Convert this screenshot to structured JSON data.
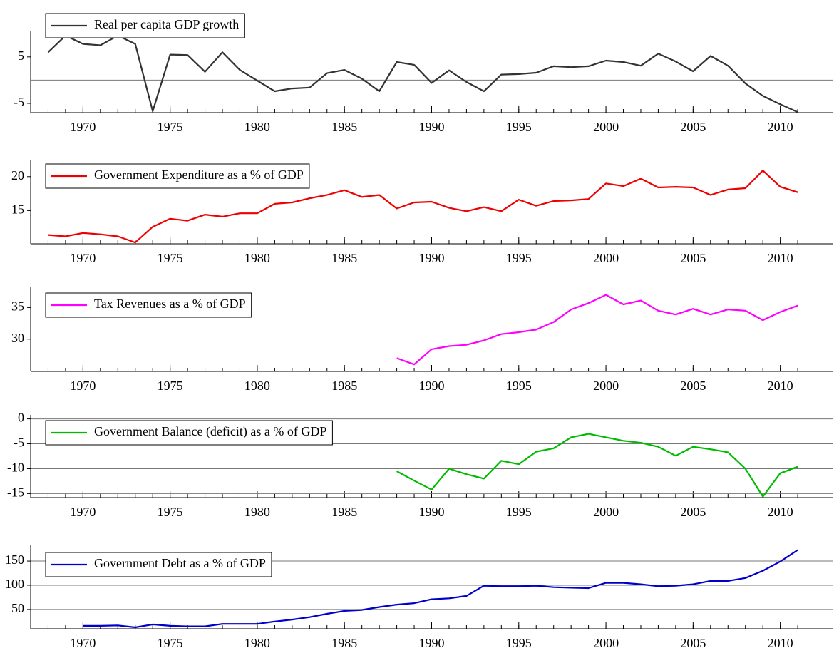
{
  "chart_data": [
    {
      "type": "line",
      "x": [
        1968,
        1969,
        1970,
        1971,
        1972,
        1973,
        1974,
        1975,
        1976,
        1977,
        1978,
        1979,
        1980,
        1981,
        1982,
        1983,
        1984,
        1985,
        1986,
        1987,
        1988,
        1989,
        1990,
        1991,
        1992,
        1993,
        1994,
        1995,
        1996,
        1997,
        1998,
        1999,
        2000,
        2001,
        2002,
        2003,
        2004,
        2005,
        2006,
        2007,
        2008,
        2009,
        2010,
        2011
      ],
      "series": [
        {
          "name": "Real per capita GDP growth",
          "color": "#333333",
          "values": [
            6.0,
            9.6,
            7.8,
            7.5,
            9.6,
            7.8,
            -6.7,
            5.5,
            5.4,
            1.8,
            6.0,
            2.2,
            -0.1,
            -2.4,
            -1.8,
            -1.6,
            1.5,
            2.2,
            0.3,
            -2.4,
            3.9,
            3.3,
            -0.6,
            2.1,
            -0.4,
            -2.4,
            1.2,
            1.3,
            1.6,
            3.0,
            2.8,
            3.0,
            4.2,
            3.9,
            3.1,
            5.7,
            4.0,
            1.9,
            5.2,
            3.1,
            -0.7,
            -3.4,
            -5.2,
            -6.9
          ]
        }
      ],
      "xlim": [
        1967,
        2013
      ],
      "xticks": [
        1970,
        1975,
        1980,
        1985,
        1990,
        1995,
        2000,
        2005,
        2010
      ],
      "ylim": [
        -7,
        10.5
      ],
      "yticks": [
        -5,
        5
      ],
      "grid": false,
      "zero_line": true
    },
    {
      "type": "line",
      "x": [
        1968,
        1969,
        1970,
        1971,
        1972,
        1973,
        1974,
        1975,
        1976,
        1977,
        1978,
        1979,
        1980,
        1981,
        1982,
        1983,
        1984,
        1985,
        1986,
        1987,
        1988,
        1989,
        1990,
        1991,
        1992,
        1993,
        1994,
        1995,
        1996,
        1997,
        1998,
        1999,
        2000,
        2001,
        2002,
        2003,
        2004,
        2005,
        2006,
        2007,
        2008,
        2009,
        2010,
        2011
      ],
      "series": [
        {
          "name": "Government Expenditure as a % of GDP",
          "color": "#ee0000",
          "values": [
            11.4,
            11.2,
            11.7,
            11.5,
            11.2,
            10.3,
            12.6,
            13.8,
            13.5,
            14.4,
            14.1,
            14.6,
            14.6,
            16.0,
            16.2,
            16.8,
            17.3,
            18.0,
            17.0,
            17.3,
            15.3,
            16.2,
            16.3,
            15.4,
            14.9,
            15.5,
            14.9,
            16.6,
            15.7,
            16.4,
            16.5,
            16.7,
            19.0,
            18.6,
            19.7,
            18.4,
            18.5,
            18.4,
            17.3,
            18.1,
            18.3,
            20.9,
            18.5,
            17.7
          ]
        }
      ],
      "xlim": [
        1967,
        2013
      ],
      "xticks": [
        1970,
        1975,
        1980,
        1985,
        1990,
        1995,
        2000,
        2005,
        2010
      ],
      "ylim": [
        10.1,
        22.5
      ],
      "yticks": [
        15,
        20
      ],
      "grid": false,
      "zero_line": false
    },
    {
      "type": "line",
      "x": [
        1968,
        1969,
        1970,
        1971,
        1972,
        1973,
        1974,
        1975,
        1976,
        1977,
        1978,
        1979,
        1980,
        1981,
        1982,
        1983,
        1984,
        1985,
        1986,
        1987,
        1988,
        1989,
        1990,
        1991,
        1992,
        1993,
        1994,
        1995,
        1996,
        1997,
        1998,
        1999,
        2000,
        2001,
        2002,
        2003,
        2004,
        2005,
        2006,
        2007,
        2008,
        2009,
        2010,
        2011
      ],
      "series": [
        {
          "name": "Tax Revenues as a % of GDP",
          "color": "#ff00ff",
          "values": [
            null,
            null,
            null,
            null,
            null,
            null,
            null,
            null,
            null,
            null,
            null,
            null,
            null,
            null,
            null,
            null,
            null,
            null,
            null,
            null,
            27.0,
            26.0,
            28.4,
            28.9,
            29.1,
            29.8,
            30.8,
            31.1,
            31.5,
            32.7,
            34.7,
            35.7,
            37.0,
            35.5,
            36.1,
            34.5,
            33.9,
            34.8,
            33.9,
            34.7,
            34.5,
            33.0,
            34.3,
            35.3
          ]
        }
      ],
      "xlim": [
        1967,
        2013
      ],
      "xticks": [
        1970,
        1975,
        1980,
        1985,
        1990,
        1995,
        2000,
        2005,
        2010
      ],
      "ylim": [
        24.9,
        38.2
      ],
      "yticks": [
        30,
        35
      ],
      "grid": false,
      "zero_line": false
    },
    {
      "type": "line",
      "x": [
        1968,
        1969,
        1970,
        1971,
        1972,
        1973,
        1974,
        1975,
        1976,
        1977,
        1978,
        1979,
        1980,
        1981,
        1982,
        1983,
        1984,
        1985,
        1986,
        1987,
        1988,
        1989,
        1990,
        1991,
        1992,
        1993,
        1994,
        1995,
        1996,
        1997,
        1998,
        1999,
        2000,
        2001,
        2002,
        2003,
        2004,
        2005,
        2006,
        2007,
        2008,
        2009,
        2010,
        2011
      ],
      "series": [
        {
          "name": "Government Balance (deficit) as a % of GDP",
          "color": "#00bb00",
          "values": [
            null,
            null,
            null,
            null,
            null,
            null,
            null,
            null,
            null,
            null,
            null,
            null,
            null,
            null,
            null,
            null,
            null,
            null,
            null,
            null,
            -10.5,
            -12.4,
            -14.2,
            -10.0,
            -11.1,
            -12.0,
            -8.4,
            -9.1,
            -6.6,
            -5.9,
            -3.7,
            -3.0,
            -3.7,
            -4.4,
            -4.8,
            -5.6,
            -7.4,
            -5.6,
            -6.1,
            -6.7,
            -10.0,
            -15.6,
            -10.9,
            -9.6
          ]
        }
      ],
      "xlim": [
        1967,
        2013
      ],
      "xticks": [
        1970,
        1975,
        1980,
        1985,
        1990,
        1995,
        2000,
        2005,
        2010
      ],
      "ylim": [
        -15.8,
        0.8
      ],
      "yticks": [
        -15,
        -10,
        -5,
        0
      ],
      "grid": true,
      "zero_line": false
    },
    {
      "type": "line",
      "x": [
        1968,
        1969,
        1970,
        1971,
        1972,
        1973,
        1974,
        1975,
        1976,
        1977,
        1978,
        1979,
        1980,
        1981,
        1982,
        1983,
        1984,
        1985,
        1986,
        1987,
        1988,
        1989,
        1990,
        1991,
        1992,
        1993,
        1994,
        1995,
        1996,
        1997,
        1998,
        1999,
        2000,
        2001,
        2002,
        2003,
        2004,
        2005,
        2006,
        2007,
        2008,
        2009,
        2010,
        2011
      ],
      "series": [
        {
          "name": "Government Debt as a % of GDP",
          "color": "#0000cc",
          "values": [
            null,
            null,
            16,
            16,
            17,
            13,
            19,
            16,
            15,
            15,
            20,
            20,
            20,
            25,
            29,
            34,
            41,
            47,
            49,
            55,
            60,
            63,
            71,
            73,
            78,
            99,
            98,
            98,
            99,
            96,
            95,
            94,
            105,
            105,
            102,
            98,
            99,
            102,
            109,
            109,
            115,
            130,
            149,
            173
          ]
        }
      ],
      "xlim": [
        1967,
        2013
      ],
      "xticks": [
        1970,
        1975,
        1980,
        1985,
        1990,
        1995,
        2000,
        2005,
        2010
      ],
      "ylim": [
        10,
        184
      ],
      "yticks": [
        50,
        100,
        150
      ],
      "grid": true,
      "zero_line": false
    }
  ]
}
